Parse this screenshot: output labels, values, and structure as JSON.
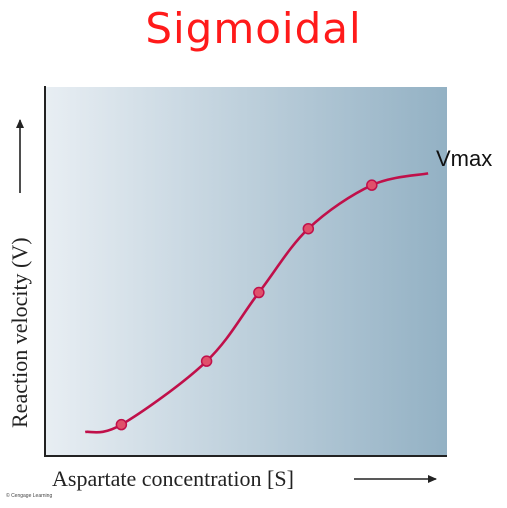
{
  "title": "Sigmoidal",
  "copyright": "© Cengage Learning",
  "colors": {
    "title": "#ff1a1a",
    "curve": "#c0104a",
    "point_fill": "#e0506a",
    "background_left": "#e8eef3",
    "background_right": "#93b1c4"
  },
  "chart_data": {
    "type": "line",
    "xlabel": "Aspartate concentration [S]",
    "ylabel": "Reaction velocity (V)",
    "annotation": "Vmax",
    "curve_shape": "sigmoidal",
    "grid": false,
    "xlim": [
      0,
      10
    ],
    "ylim": [
      0,
      10
    ],
    "x": [
      1.9,
      4.02,
      5.32,
      6.55,
      8.13
    ],
    "y": [
      0.85,
      2.57,
      4.43,
      6.16,
      7.34
    ],
    "series": [
      {
        "values": [
          0.85,
          2.57,
          4.43,
          6.16,
          7.34
        ]
      }
    ]
  }
}
